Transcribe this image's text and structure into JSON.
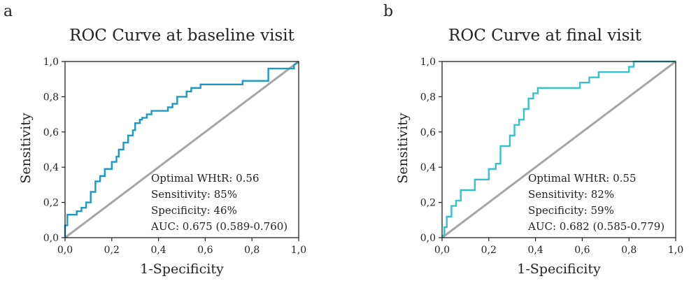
{
  "figure": {
    "panels": [
      {
        "letter": "a",
        "title": "ROC Curve at baseline visit",
        "xlabel": "1-Specificity",
        "ylabel": "Sensitivity",
        "annotations": [
          "Optimal WHtR: 0.56",
          "Sensitivity: 85%",
          "Specificity: 46%",
          "AUC: 0.675 (0.589-0.760)"
        ]
      },
      {
        "letter": "b",
        "title": "ROC Curve at final visit",
        "xlabel": "1-Specificity",
        "ylabel": "Sensitivity",
        "annotations": [
          "Optimal WHtR: 0.55",
          "Sensitivity: 82%",
          "Specificity: 59%",
          "AUC: 0.682 (0.585-0.779)"
        ]
      }
    ]
  },
  "chart_data": [
    {
      "type": "line",
      "title": "ROC Curve at baseline visit",
      "xlabel": "1-Specificity",
      "ylabel": "Sensitivity",
      "xlim": [
        0,
        1
      ],
      "ylim": [
        0,
        1
      ],
      "x_ticks": [
        "0,0",
        "0,2",
        "0,4",
        "0,6",
        "0,8",
        "1,0"
      ],
      "y_ticks": [
        "0,0",
        "0,2",
        "0,4",
        "0,6",
        "0,8",
        "1,0"
      ],
      "grid": false,
      "curve_color": "#1a9ac6",
      "reference_line_color": "#a6a6a6",
      "series": [
        {
          "x": [
            0,
            0,
            0.01,
            0.01,
            0.05,
            0.05,
            0.07,
            0.07,
            0.09,
            0.09,
            0.11,
            0.11,
            0.13,
            0.13,
            0.15,
            0.15,
            0.17,
            0.17,
            0.2,
            0.2,
            0.22,
            0.22,
            0.23,
            0.23,
            0.25,
            0.25,
            0.27,
            0.27,
            0.29,
            0.29,
            0.3,
            0.3,
            0.32,
            0.32,
            0.33,
            0.33,
            0.35,
            0.35,
            0.37,
            0.37,
            0.44,
            0.44,
            0.46,
            0.46,
            0.48,
            0.48,
            0.52,
            0.52,
            0.54,
            0.54,
            0.58,
            0.58,
            0.76,
            0.76,
            0.87,
            0.87,
            0.98,
            0.98,
            1
          ],
          "y": [
            0,
            0.07,
            0.07,
            0.13,
            0.13,
            0.15,
            0.15,
            0.17,
            0.17,
            0.2,
            0.2,
            0.26,
            0.26,
            0.32,
            0.32,
            0.35,
            0.35,
            0.39,
            0.39,
            0.43,
            0.43,
            0.46,
            0.46,
            0.5,
            0.5,
            0.54,
            0.54,
            0.58,
            0.58,
            0.61,
            0.61,
            0.65,
            0.65,
            0.67,
            0.67,
            0.68,
            0.68,
            0.7,
            0.7,
            0.72,
            0.72,
            0.74,
            0.74,
            0.76,
            0.76,
            0.8,
            0.8,
            0.83,
            0.83,
            0.85,
            0.85,
            0.87,
            0.87,
            0.89,
            0.89,
            0.96,
            0.96,
            0.98,
            1
          ]
        },
        {
          "x": [
            0,
            1
          ],
          "y": [
            0,
            1
          ]
        }
      ]
    },
    {
      "type": "line",
      "title": "ROC Curve at final visit",
      "xlabel": "1-Specificity",
      "ylabel": "Sensitivity",
      "xlim": [
        0,
        1
      ],
      "ylim": [
        0,
        1
      ],
      "x_ticks": [
        "0,0",
        "0,2",
        "0,4",
        "0,6",
        "0,8",
        "1,0"
      ],
      "y_ticks": [
        "0,0",
        "0,2",
        "0,4",
        "0,6",
        "0,8",
        "1,0"
      ],
      "grid": false,
      "curve_color": "#33c3cc",
      "reference_line_color": "#a6a6a6",
      "series": [
        {
          "x": [
            0,
            0.01,
            0.01,
            0.02,
            0.02,
            0.04,
            0.04,
            0.06,
            0.06,
            0.08,
            0.08,
            0.14,
            0.14,
            0.2,
            0.2,
            0.23,
            0.23,
            0.25,
            0.25,
            0.29,
            0.29,
            0.31,
            0.31,
            0.33,
            0.33,
            0.35,
            0.35,
            0.37,
            0.37,
            0.39,
            0.39,
            0.41,
            0.41,
            0.59,
            0.59,
            0.63,
            0.63,
            0.67,
            0.67,
            0.8,
            0.8,
            0.82,
            0.82,
            1
          ],
          "y": [
            0,
            0.02,
            0.06,
            0.06,
            0.12,
            0.12,
            0.18,
            0.18,
            0.21,
            0.21,
            0.27,
            0.27,
            0.33,
            0.33,
            0.39,
            0.39,
            0.42,
            0.42,
            0.52,
            0.52,
            0.58,
            0.58,
            0.64,
            0.64,
            0.67,
            0.67,
            0.73,
            0.73,
            0.79,
            0.79,
            0.82,
            0.82,
            0.85,
            0.85,
            0.88,
            0.88,
            0.91,
            0.91,
            0.94,
            0.94,
            0.97,
            0.97,
            1,
            1
          ]
        },
        {
          "x": [
            0,
            1
          ],
          "y": [
            0,
            1
          ]
        }
      ]
    }
  ]
}
